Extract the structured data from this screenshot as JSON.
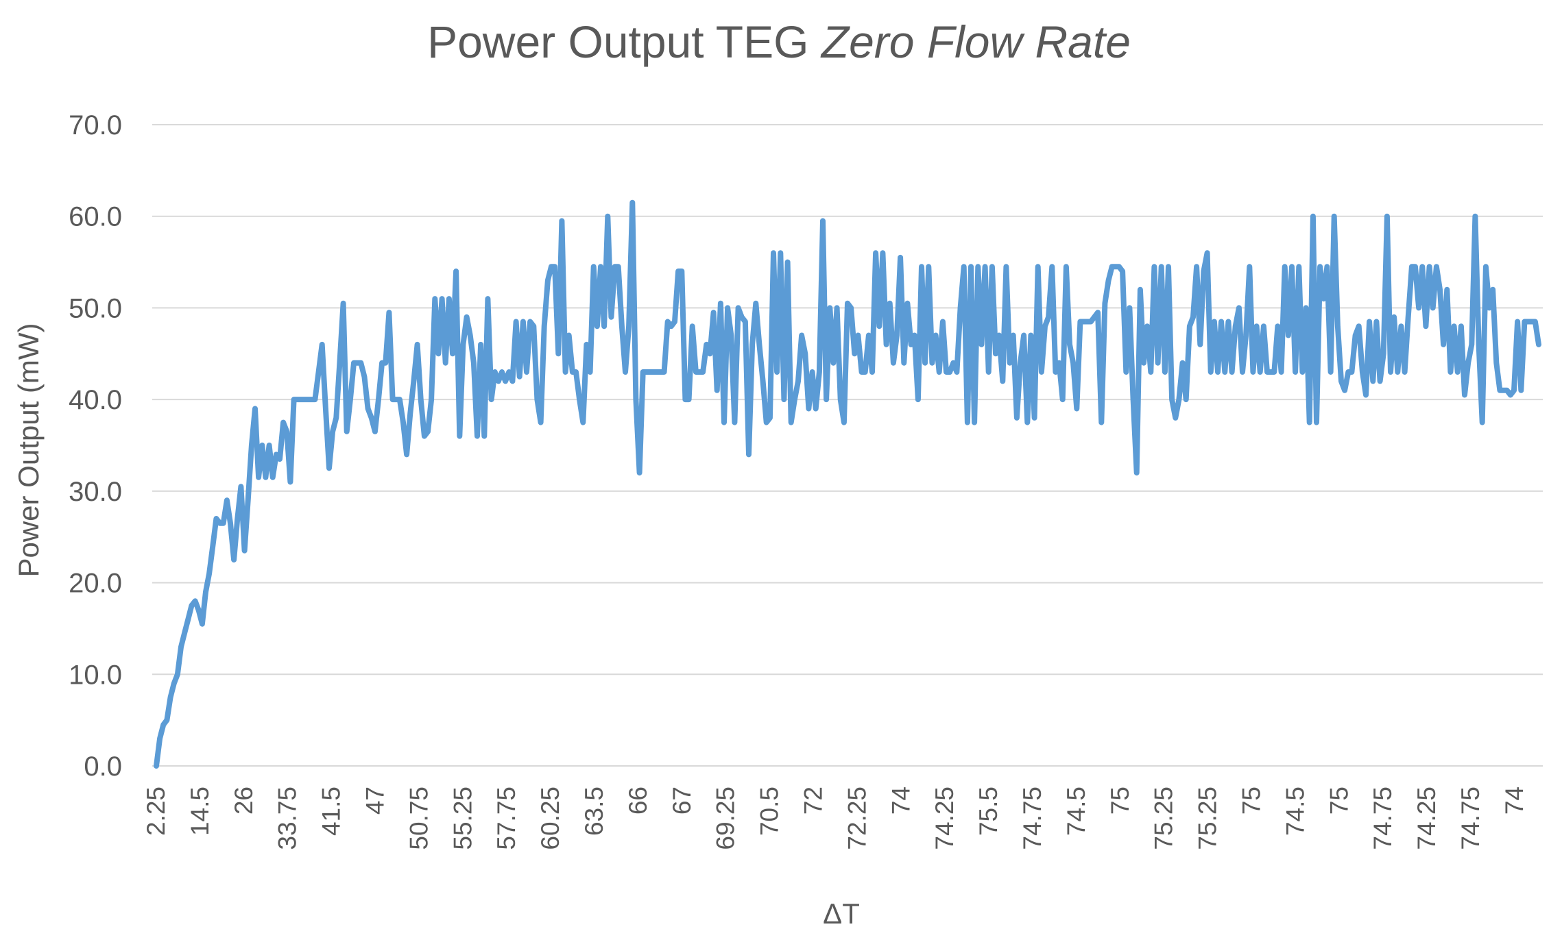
{
  "chart_data": {
    "type": "line",
    "title": "Power Output TEG",
    "title_italic": "Zero Flow Rate",
    "xlabel": "ΔT",
    "ylabel": "Power Output (mW)",
    "ylim": [
      0,
      70
    ],
    "yticks": [
      "0.0",
      "10.0",
      "20.0",
      "30.0",
      "40.0",
      "50.0",
      "60.0",
      "70.0"
    ],
    "grid": true,
    "legend": "none",
    "line_color": "#5b9bd5",
    "x_tick_labels": [
      "2.25",
      "14.5",
      "26",
      "33.75",
      "41.5",
      "47",
      "50.75",
      "55.25",
      "57.75",
      "60.25",
      "63.5",
      "66",
      "67",
      "69.25",
      "70.5",
      "72",
      "72.25",
      "74",
      "74.25",
      "75.5",
      "74.75",
      "74.5",
      "75",
      "75.25",
      "75.25",
      "75",
      "74.5",
      "75",
      "74.75",
      "74.25",
      "74.75",
      "74"
    ],
    "series": [
      {
        "values": [
          0,
          3,
          4.5,
          5,
          7.5,
          9,
          10,
          13,
          14.5,
          16,
          17.5,
          18,
          17,
          15.5,
          19,
          21,
          24,
          27,
          26.5,
          26.5,
          29,
          26.5,
          22.5,
          27,
          30.5,
          23.5,
          29,
          35,
          39,
          31.5,
          35,
          31.5,
          35,
          31.5,
          34,
          33.5,
          37.5,
          36.5,
          31,
          40,
          40,
          40,
          40,
          40,
          40,
          40,
          43,
          46,
          39,
          32.5,
          36.5,
          38,
          44,
          50.5,
          36.5,
          40,
          44,
          44,
          44,
          42.5,
          39,
          38,
          36.5,
          40,
          44,
          44,
          49.5,
          40,
          40,
          40,
          37.5,
          34,
          38.5,
          42,
          46,
          40,
          36,
          36.5,
          40,
          51,
          45,
          51,
          44,
          51,
          45,
          54,
          36,
          46,
          49,
          47,
          44,
          36,
          46,
          36,
          51,
          40,
          43,
          42,
          43,
          42,
          43,
          42,
          48.5,
          42.5,
          48.5,
          43,
          48.5,
          48,
          40,
          37.5,
          48,
          53,
          54.5,
          54.5,
          45,
          59.5,
          43,
          47,
          43,
          43,
          40,
          37.5,
          46,
          43,
          54.5,
          48,
          54.5,
          48,
          60,
          49,
          54.5,
          54.5,
          48,
          43,
          48,
          61.5,
          40,
          32,
          43,
          43,
          43,
          43,
          43,
          43,
          43,
          48.5,
          48,
          48.5,
          54,
          54,
          40,
          40,
          48,
          43,
          43,
          43,
          46,
          45,
          49.5,
          41,
          50.5,
          37.5,
          50,
          47,
          37.5,
          50,
          49,
          48.5,
          34,
          46,
          50.5,
          46,
          42,
          37.5,
          38,
          56,
          43,
          56,
          40,
          55,
          37.5,
          40,
          42,
          47,
          45,
          39,
          43,
          39,
          43,
          59.5,
          40,
          50,
          44,
          50,
          40,
          37.5,
          50.5,
          50,
          45,
          47,
          43,
          43,
          47,
          43,
          56,
          48,
          56,
          46,
          50.5,
          44,
          47,
          55.5,
          44,
          50.5,
          46,
          47,
          40,
          54.5,
          44,
          54.5,
          44,
          47,
          43,
          48.5,
          43,
          43,
          44,
          43,
          50,
          54.5,
          37.5,
          54.5,
          37.5,
          54.5,
          46,
          54.5,
          43,
          54.5,
          45,
          47,
          42,
          54.5,
          44,
          47,
          38,
          44,
          47,
          37.5,
          47,
          38,
          54.5,
          43,
          48,
          49,
          54.5,
          43,
          44,
          40,
          54.5,
          46,
          44,
          39,
          48.5,
          48.5,
          48.5,
          48.5,
          49,
          49.5,
          37.5,
          50.5,
          53,
          54.5,
          54.5,
          54.5,
          54,
          43,
          50,
          40,
          32,
          52,
          44,
          48,
          43,
          54.5,
          44,
          54.5,
          43,
          54.5,
          40,
          38,
          40,
          44,
          40,
          48,
          49,
          54.5,
          46,
          54,
          56,
          43,
          48.5,
          43,
          48.5,
          43,
          48.5,
          43,
          48,
          50,
          43,
          47,
          54.5,
          43,
          48,
          43,
          48,
          43,
          43,
          43,
          48,
          43,
          54.5,
          47,
          54.5,
          43,
          54.5,
          43,
          50,
          37.5,
          60,
          37.5,
          54.5,
          51,
          54.5,
          43,
          60,
          48,
          42,
          41,
          43,
          43,
          47,
          48,
          43,
          40.5,
          48.5,
          42,
          48.5,
          42,
          45,
          60,
          43,
          49,
          43,
          48,
          43,
          49,
          54.5,
          54.5,
          50,
          54.5,
          48,
          54.5,
          50,
          54.5,
          52,
          46,
          52,
          43,
          48,
          43,
          48,
          40.5,
          44,
          46,
          60,
          46,
          37.5,
          54.5,
          50,
          52,
          44,
          41,
          41,
          41,
          40.5,
          41,
          48.5,
          41,
          48.5,
          48.5,
          48.5,
          48.5,
          46
        ]
      }
    ]
  }
}
